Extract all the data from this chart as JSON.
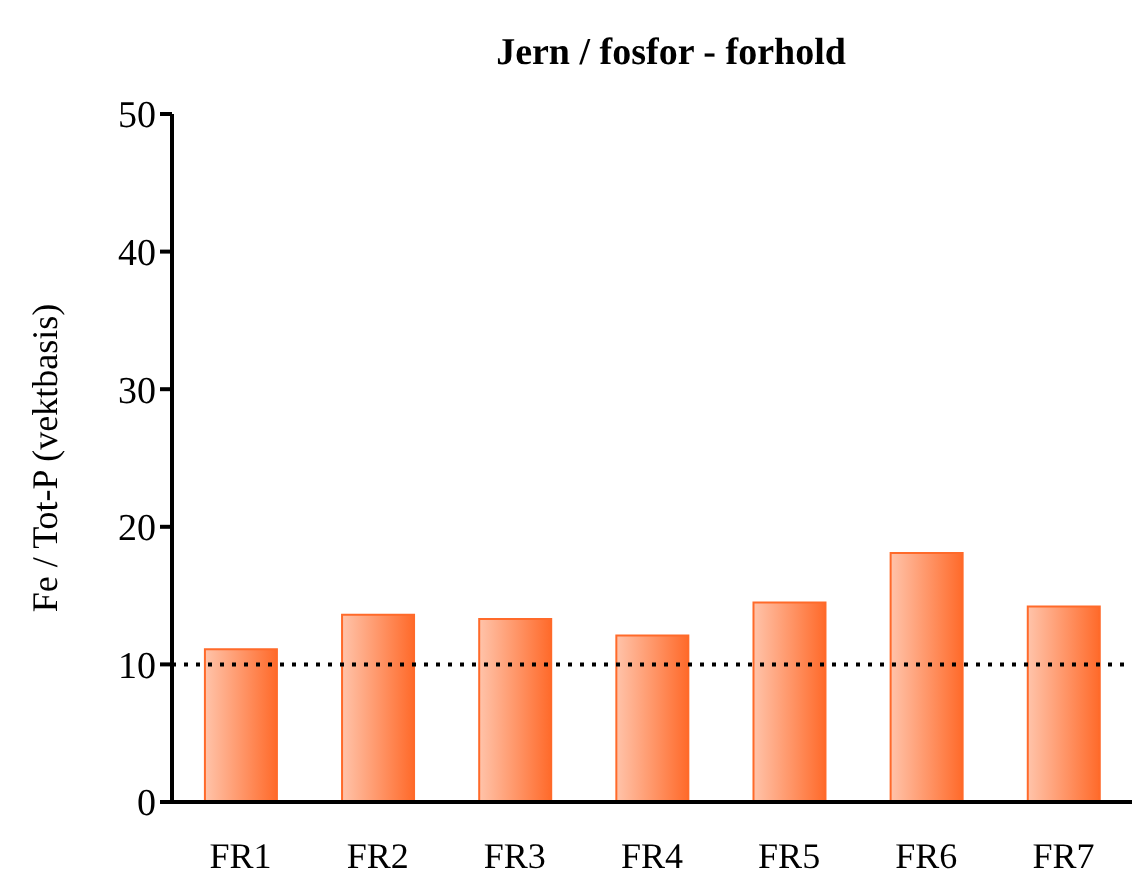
{
  "chart_data": {
    "type": "bar",
    "title": "Jern / fosfor - forhold",
    "ylabel": "Fe / Tot-P (vektbasis)",
    "categories": [
      "FR1",
      "FR2",
      "FR3",
      "FR4",
      "FR5",
      "FR6",
      "FR7"
    ],
    "values": [
      11.1,
      13.6,
      13.3,
      12.1,
      14.5,
      18.1,
      14.2
    ],
    "color": "#ff6a2a",
    "ylim": [
      0,
      50
    ],
    "yticks": [
      0,
      10,
      20,
      30,
      40,
      50
    ],
    "grid": false,
    "ref_lines": [
      {
        "axis": "y",
        "value": 10,
        "line_style": "dotted",
        "color": "#000000"
      }
    ]
  }
}
